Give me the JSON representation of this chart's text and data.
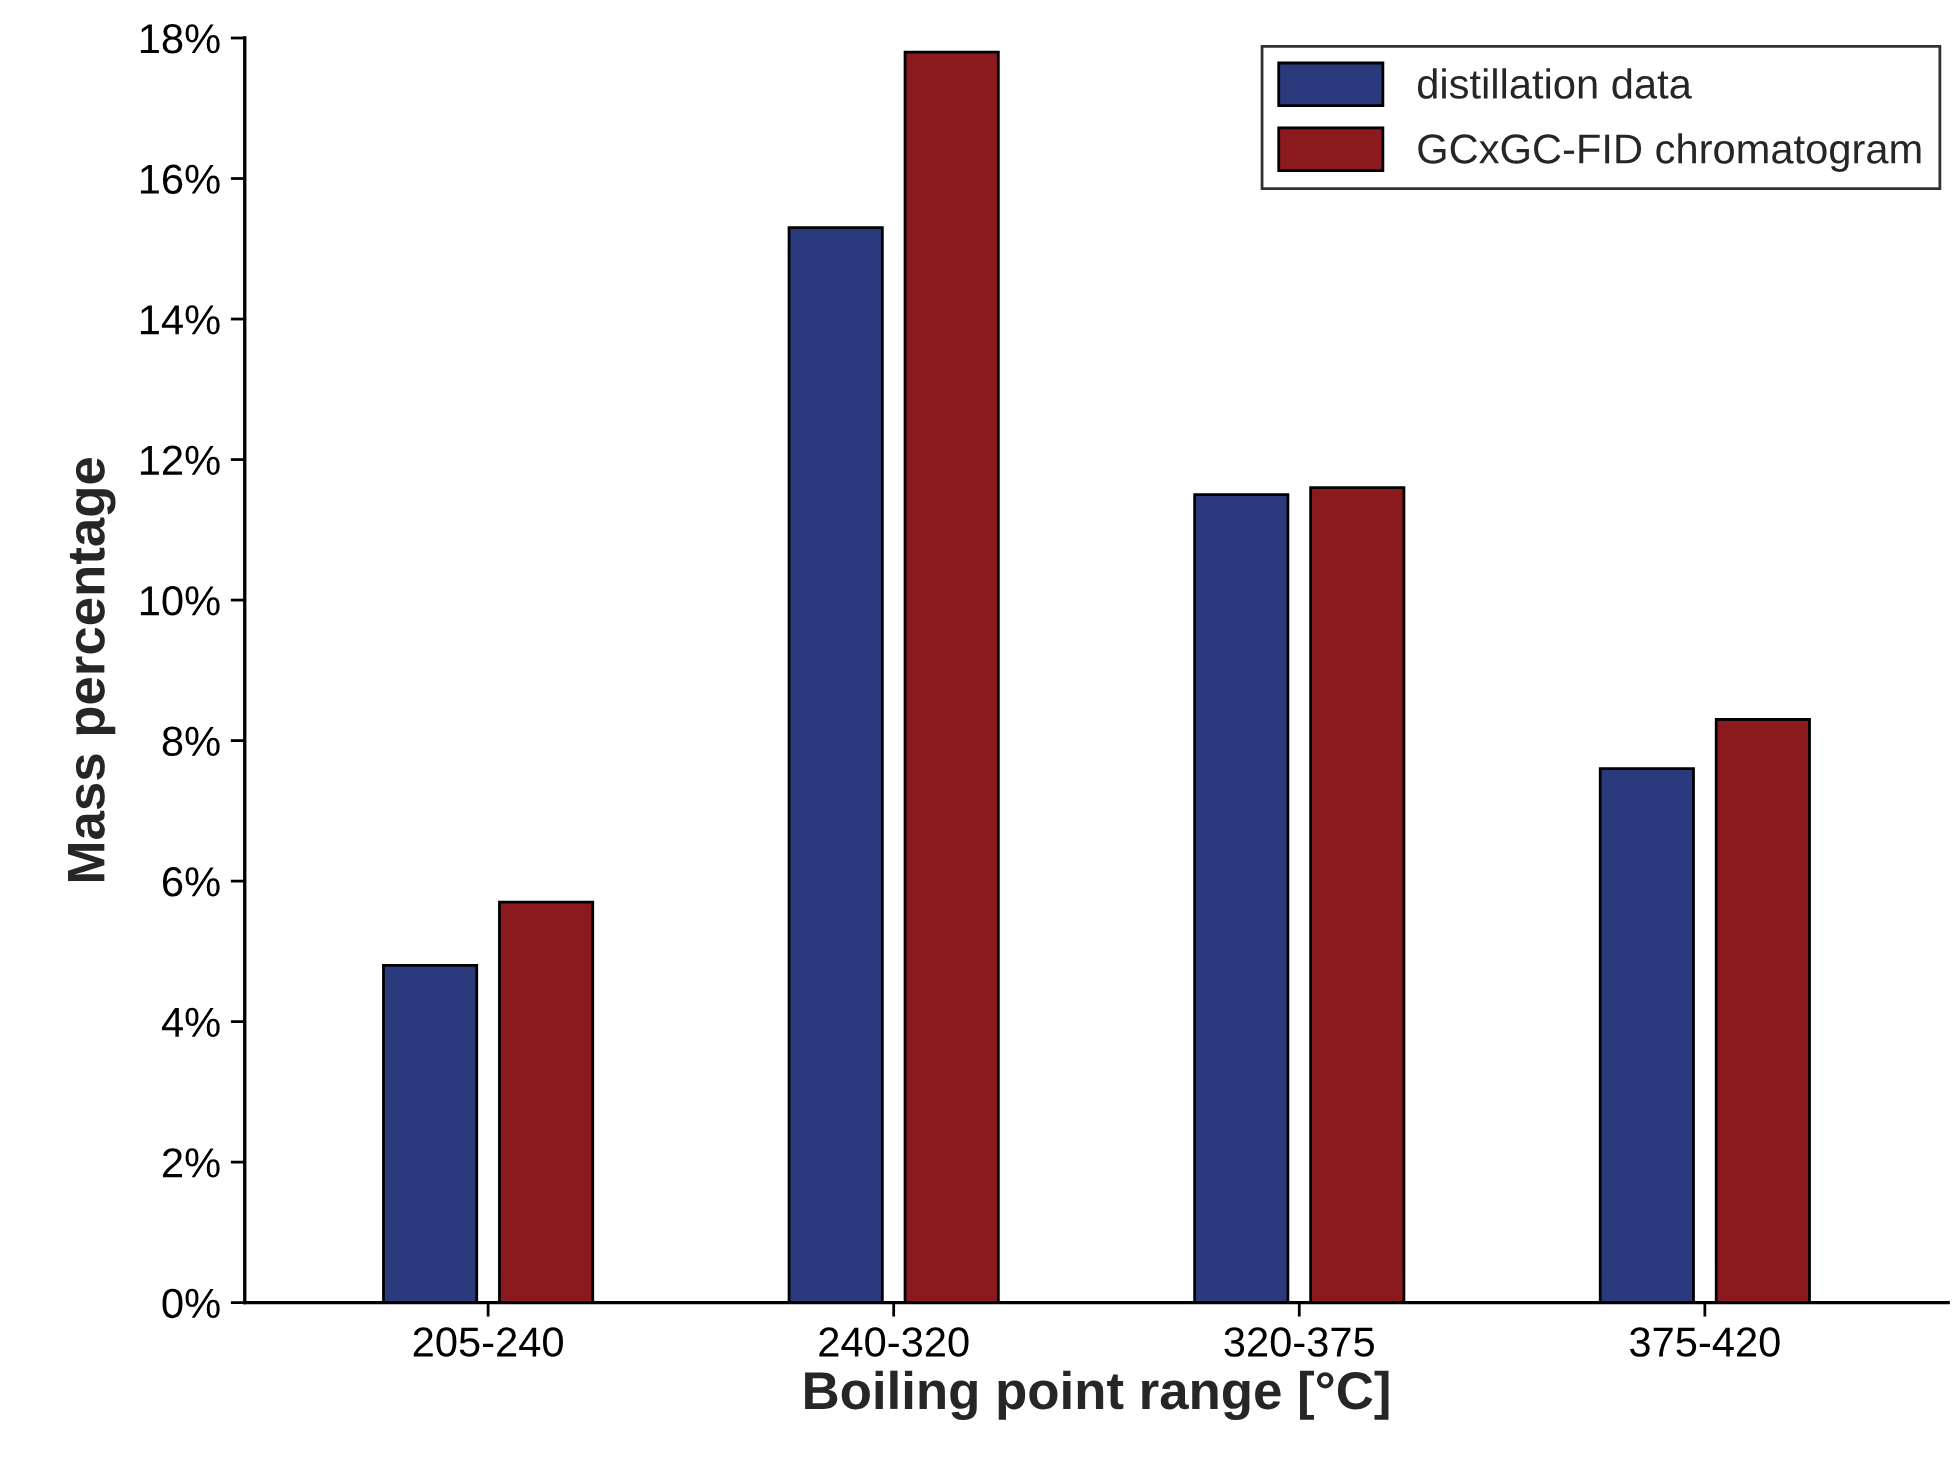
{
  "chart_data": {
    "type": "bar",
    "xlabel": "Boiling point range [°C]",
    "ylabel": "Mass percentage",
    "categories": [
      "205-240",
      "240-320",
      "320-375",
      "375-420"
    ],
    "series": [
      {
        "name": "distillation data",
        "color": "#2a3a7c",
        "values": [
          4.8,
          15.3,
          11.5,
          7.6
        ]
      },
      {
        "name": "GCxGC-FID chromatogram",
        "color": "#8b1a1e",
        "values": [
          5.7,
          17.8,
          11.6,
          8.3
        ]
      }
    ],
    "ylim": [
      0,
      18
    ],
    "yticks": [
      {
        "value": 0,
        "label": "0%"
      },
      {
        "value": 2,
        "label": "2%"
      },
      {
        "value": 4,
        "label": "4%"
      },
      {
        "value": 6,
        "label": "6%"
      },
      {
        "value": 8,
        "label": "8%"
      },
      {
        "value": 10,
        "label": "10%"
      },
      {
        "value": 12,
        "label": "12%"
      },
      {
        "value": 14,
        "label": "14%"
      },
      {
        "value": 16,
        "label": "16%"
      },
      {
        "value": 18,
        "label": "18%"
      }
    ],
    "grid": false,
    "legend": "top right"
  }
}
